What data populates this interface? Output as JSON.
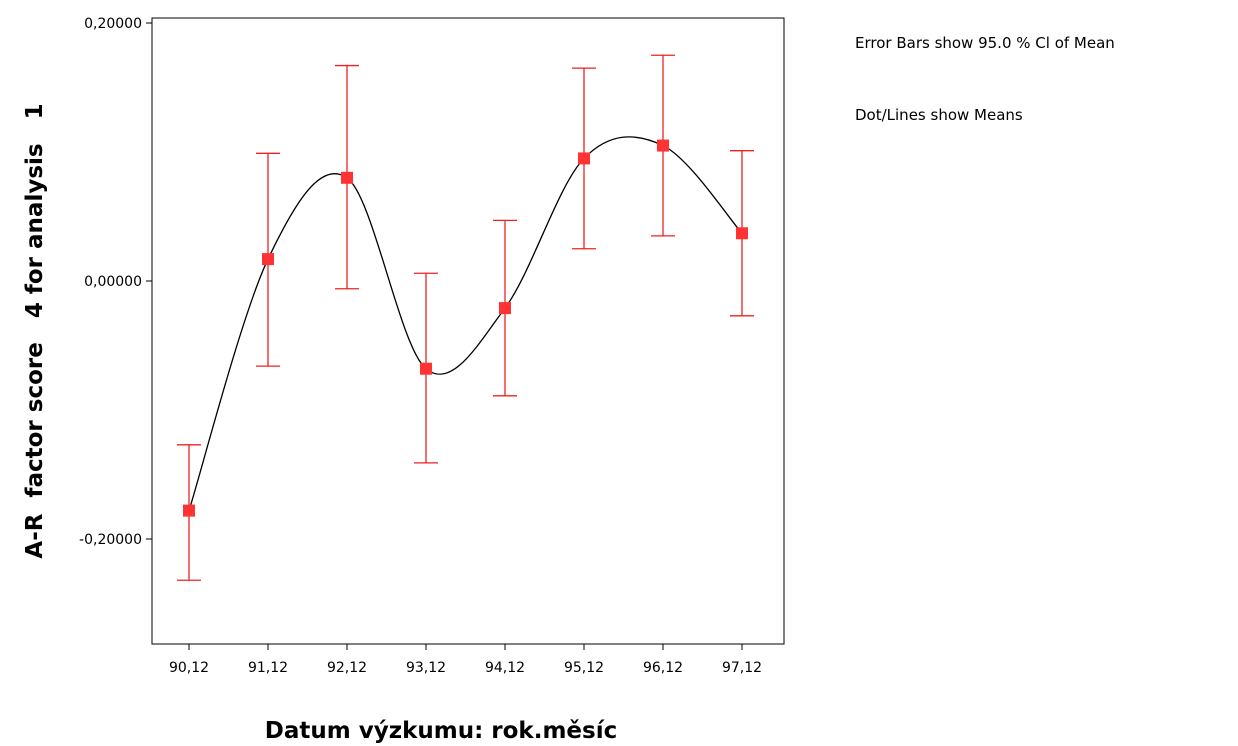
{
  "chart_data": {
    "type": "line",
    "title": "",
    "xlabel": "Datum výzkumu: rok.měsíc",
    "ylabel": "A-R  factor score   4 for analysis   1",
    "categories": [
      "90,12",
      "91,12",
      "92,12",
      "93,12",
      "94,12",
      "95,12",
      "96,12",
      "97,12"
    ],
    "series": [
      {
        "values": [
          -0.178,
          0.017,
          0.08,
          -0.068,
          -0.021,
          0.095,
          0.105,
          0.037
        ],
        "ci_lower": [
          -0.232,
          -0.066,
          -0.006,
          -0.141,
          -0.089,
          0.025,
          0.035,
          -0.027
        ],
        "ci_upper": [
          -0.127,
          0.099,
          0.167,
          0.006,
          0.047,
          0.165,
          0.175,
          0.101
        ]
      }
    ],
    "ylim": [
      -0.28,
      0.2
    ],
    "yticks": [
      0.2,
      0.0,
      -0.2
    ],
    "ytick_labels": [
      "0,20000",
      "0,00000",
      "-0,20000"
    ],
    "grid": false,
    "marker_color": "#ff3333",
    "errorbar_color": "#ee2222",
    "line_color": "#000000",
    "annotations": [
      "Error Bars show 95.0 % Cl of Mean",
      "Dot/Lines show Means"
    ]
  }
}
